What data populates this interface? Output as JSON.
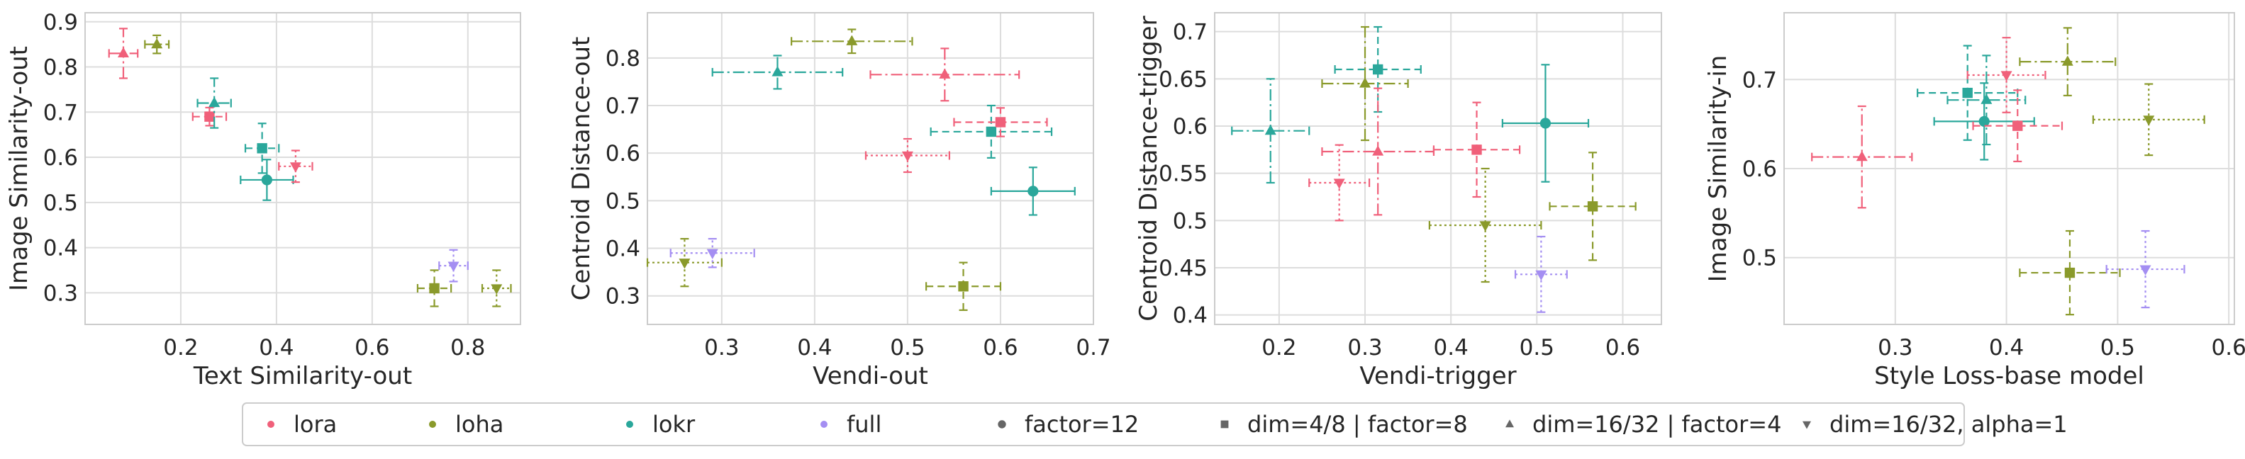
{
  "legend": {
    "items": [
      {
        "label": "lora",
        "kind": "color",
        "color": "#f0607a"
      },
      {
        "label": "loha",
        "kind": "color",
        "color": "#8a9a2b"
      },
      {
        "label": "lokr",
        "kind": "color",
        "color": "#2aa79b"
      },
      {
        "label": "full",
        "kind": "color",
        "color": "#a48ef2"
      },
      {
        "label": "factor=12",
        "kind": "marker",
        "marker": "o"
      },
      {
        "label": "dim=4/8 | factor=8",
        "kind": "marker",
        "marker": "s"
      },
      {
        "label": "dim=16/32 | factor=4",
        "kind": "marker",
        "marker": "^"
      },
      {
        "label": "dim=16/32, alpha=1",
        "kind": "marker",
        "marker": "v"
      }
    ]
  },
  "chart_data": [
    {
      "type": "scatter",
      "xlabel": "Text Similarity-out",
      "ylabel": "Image Similarity-out",
      "xlim": [
        0.0,
        0.91
      ],
      "ylim": [
        0.23,
        0.92
      ],
      "xticks": [
        0.2,
        0.4,
        0.6,
        0.8
      ],
      "yticks": [
        0.3,
        0.4,
        0.5,
        0.6,
        0.7,
        0.8,
        0.9
      ],
      "grid": true,
      "points": [
        {
          "algo": "lora",
          "config": "dim=16/32 | factor=4",
          "x": 0.08,
          "xerr": 0.03,
          "y": 0.83,
          "yerr": 0.055
        },
        {
          "algo": "loha",
          "config": "dim=16/32 | factor=4",
          "x": 0.15,
          "xerr": 0.025,
          "y": 0.85,
          "yerr": 0.02
        },
        {
          "algo": "lora",
          "config": "dim=4/8 | factor=8",
          "x": 0.26,
          "xerr": 0.035,
          "y": 0.69,
          "yerr": 0.02
        },
        {
          "algo": "lokr",
          "config": "dim=16/32 | factor=4",
          "x": 0.27,
          "xerr": 0.035,
          "y": 0.72,
          "yerr": 0.055
        },
        {
          "algo": "lokr",
          "config": "dim=4/8 | factor=8",
          "x": 0.37,
          "xerr": 0.035,
          "y": 0.62,
          "yerr": 0.055
        },
        {
          "algo": "lokr",
          "config": "factor=12",
          "x": 0.38,
          "xerr": 0.055,
          "y": 0.55,
          "yerr": 0.045
        },
        {
          "algo": "lora",
          "config": "dim=16/32, alpha=1",
          "x": 0.44,
          "xerr": 0.035,
          "y": 0.58,
          "yerr": 0.035
        },
        {
          "algo": "loha",
          "config": "dim=4/8 | factor=8",
          "x": 0.73,
          "xerr": 0.035,
          "y": 0.31,
          "yerr": 0.04
        },
        {
          "algo": "full",
          "config": "dim=16/32, alpha=1",
          "x": 0.77,
          "xerr": 0.03,
          "y": 0.36,
          "yerr": 0.035
        },
        {
          "algo": "loha",
          "config": "dim=16/32, alpha=1",
          "x": 0.86,
          "xerr": 0.03,
          "y": 0.31,
          "yerr": 0.04
        }
      ]
    },
    {
      "type": "scatter",
      "xlabel": "Vendi-out",
      "ylabel": "Centroid Distance-out",
      "xlim": [
        0.22,
        0.7
      ],
      "ylim": [
        0.24,
        0.895
      ],
      "xticks": [
        0.3,
        0.4,
        0.5,
        0.6,
        0.7
      ],
      "yticks": [
        0.3,
        0.4,
        0.5,
        0.6,
        0.7,
        0.8
      ],
      "grid": true,
      "points": [
        {
          "algo": "loha",
          "config": "dim=16/32, alpha=1",
          "x": 0.26,
          "xerr": 0.04,
          "y": 0.37,
          "yerr": 0.05
        },
        {
          "algo": "full",
          "config": "dim=16/32, alpha=1",
          "x": 0.29,
          "xerr": 0.045,
          "y": 0.39,
          "yerr": 0.03
        },
        {
          "algo": "lokr",
          "config": "dim=16/32 | factor=4",
          "x": 0.36,
          "xerr": 0.07,
          "y": 0.77,
          "yerr": 0.035
        },
        {
          "algo": "loha",
          "config": "dim=16/32 | factor=4",
          "x": 0.44,
          "xerr": 0.065,
          "y": 0.835,
          "yerr": 0.025
        },
        {
          "algo": "lora",
          "config": "dim=16/32, alpha=1",
          "x": 0.5,
          "xerr": 0.045,
          "y": 0.595,
          "yerr": 0.035
        },
        {
          "algo": "lora",
          "config": "dim=16/32 | factor=4",
          "x": 0.54,
          "xerr": 0.08,
          "y": 0.765,
          "yerr": 0.055
        },
        {
          "algo": "loha",
          "config": "dim=4/8 | factor=8",
          "x": 0.56,
          "xerr": 0.04,
          "y": 0.32,
          "yerr": 0.05
        },
        {
          "algo": "lokr",
          "config": "dim=4/8 | factor=8",
          "x": 0.59,
          "xerr": 0.065,
          "y": 0.645,
          "yerr": 0.055
        },
        {
          "algo": "lora",
          "config": "dim=4/8 | factor=8",
          "x": 0.6,
          "xerr": 0.05,
          "y": 0.665,
          "yerr": 0.03
        },
        {
          "algo": "lokr",
          "config": "factor=12",
          "x": 0.635,
          "xerr": 0.045,
          "y": 0.52,
          "yerr": 0.05
        }
      ]
    },
    {
      "type": "scatter",
      "xlabel": "Vendi-trigger",
      "ylabel": "Centroid Distance-trigger",
      "xlim": [
        0.125,
        0.645
      ],
      "ylim": [
        0.39,
        0.72
      ],
      "xticks": [
        0.2,
        0.3,
        0.4,
        0.5,
        0.6
      ],
      "yticks": [
        0.4,
        0.45,
        0.5,
        0.55,
        0.6,
        0.65,
        0.7
      ],
      "grid": true,
      "points": [
        {
          "algo": "lokr",
          "config": "dim=16/32 | factor=4",
          "x": 0.19,
          "xerr": 0.045,
          "y": 0.595,
          "yerr": 0.055
        },
        {
          "algo": "lora",
          "config": "dim=16/32, alpha=1",
          "x": 0.27,
          "xerr": 0.035,
          "y": 0.54,
          "yerr": 0.04
        },
        {
          "algo": "loha",
          "config": "dim=16/32 | factor=4",
          "x": 0.3,
          "xerr": 0.05,
          "y": 0.645,
          "yerr": 0.06
        },
        {
          "algo": "lokr",
          "config": "dim=4/8 | factor=8",
          "x": 0.315,
          "xerr": 0.05,
          "y": 0.66,
          "yerr": 0.045
        },
        {
          "algo": "lora",
          "config": "dim=16/32 | factor=4",
          "x": 0.315,
          "xerr": 0.065,
          "y": 0.573,
          "yerr": 0.067
        },
        {
          "algo": "lora",
          "config": "dim=4/8 | factor=8",
          "x": 0.43,
          "xerr": 0.05,
          "y": 0.575,
          "yerr": 0.05
        },
        {
          "algo": "loha",
          "config": "dim=16/32, alpha=1",
          "x": 0.44,
          "xerr": 0.065,
          "y": 0.495,
          "yerr": 0.06
        },
        {
          "algo": "full",
          "config": "dim=16/32, alpha=1",
          "x": 0.505,
          "xerr": 0.03,
          "y": 0.443,
          "yerr": 0.04
        },
        {
          "algo": "lokr",
          "config": "factor=12",
          "x": 0.51,
          "xerr": 0.05,
          "y": 0.603,
          "yerr": 0.062
        },
        {
          "algo": "loha",
          "config": "dim=4/8 | factor=8",
          "x": 0.565,
          "xerr": 0.05,
          "y": 0.515,
          "yerr": 0.057
        }
      ]
    },
    {
      "type": "scatter",
      "xlabel": "Style Loss-base model",
      "ylabel": "Image Similarity-in",
      "xlim": [
        0.2,
        0.605
      ],
      "ylim": [
        0.425,
        0.775
      ],
      "xticks": [
        0.3,
        0.4,
        0.5,
        0.6
      ],
      "yticks": [
        0.5,
        0.6,
        0.7
      ],
      "grid": true,
      "points": [
        {
          "algo": "lora",
          "config": "dim=16/32 | factor=4",
          "x": 0.27,
          "xerr": 0.045,
          "y": 0.613,
          "yerr": 0.057
        },
        {
          "algo": "lokr",
          "config": "dim=4/8 | factor=8",
          "x": 0.365,
          "xerr": 0.045,
          "y": 0.685,
          "yerr": 0.053
        },
        {
          "algo": "lokr",
          "config": "factor=12",
          "x": 0.38,
          "xerr": 0.045,
          "y": 0.653,
          "yerr": 0.043
        },
        {
          "algo": "lokr",
          "config": "dim=16/32 | factor=4",
          "x": 0.382,
          "xerr": 0.035,
          "y": 0.677,
          "yerr": 0.05
        },
        {
          "algo": "lora",
          "config": "dim=16/32, alpha=1",
          "x": 0.4,
          "xerr": 0.035,
          "y": 0.705,
          "yerr": 0.042
        },
        {
          "algo": "lora",
          "config": "dim=4/8 | factor=8",
          "x": 0.41,
          "xerr": 0.04,
          "y": 0.648,
          "yerr": 0.04
        },
        {
          "algo": "loha",
          "config": "dim=16/32 | factor=4",
          "x": 0.455,
          "xerr": 0.043,
          "y": 0.72,
          "yerr": 0.038
        },
        {
          "algo": "loha",
          "config": "dim=4/8 | factor=8",
          "x": 0.457,
          "xerr": 0.045,
          "y": 0.483,
          "yerr": 0.047
        },
        {
          "algo": "full",
          "config": "dim=16/32, alpha=1",
          "x": 0.525,
          "xerr": 0.035,
          "y": 0.487,
          "yerr": 0.043
        },
        {
          "algo": "loha",
          "config": "dim=16/32, alpha=1",
          "x": 0.528,
          "xerr": 0.05,
          "y": 0.655,
          "yerr": 0.04
        }
      ]
    }
  ]
}
